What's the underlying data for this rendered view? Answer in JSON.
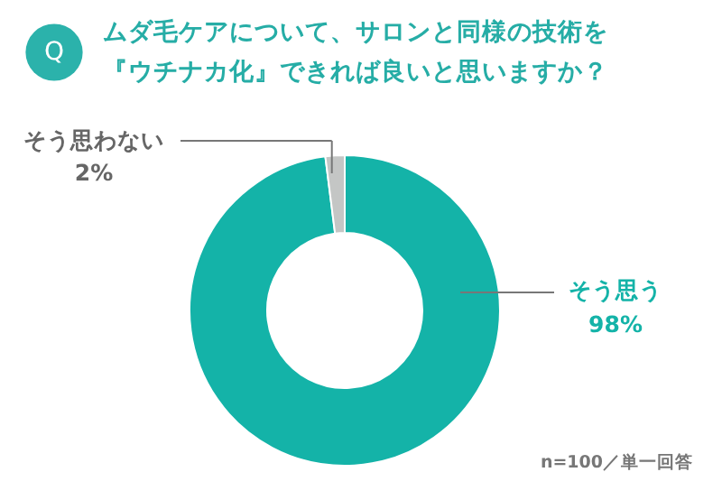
{
  "chart_data": {
    "type": "donut",
    "title": "ムダ毛ケアについて、サロンと同様の技術を『ウチナカ化』できれば良いと思いますか？",
    "categories": [
      "そう思う",
      "そう思わない"
    ],
    "values": [
      98,
      2
    ],
    "colors": [
      "#14b3a8",
      "#c4c6c5"
    ],
    "value_labels": [
      "98%",
      "2%"
    ],
    "annotations": [
      "Q",
      "n=100／単一回答"
    ]
  }
}
